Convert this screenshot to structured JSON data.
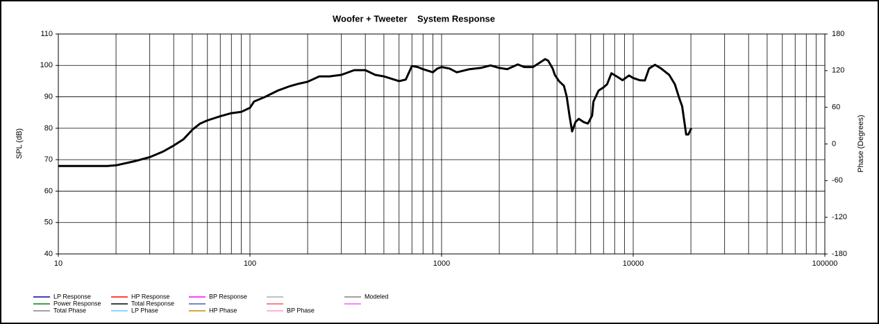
{
  "chart_data": {
    "type": "line",
    "title": "Woofer + Tweeter    System Response",
    "ylabel": "SPL (dB)",
    "y2label": "Phase (Degrees)",
    "log_x": true,
    "grid": true,
    "x_minor_grid": true,
    "xlim": [
      10,
      100000
    ],
    "xticks": [
      10,
      100,
      1000,
      10000,
      100000
    ],
    "ylim": [
      40,
      110
    ],
    "yticks": [
      40,
      50,
      60,
      70,
      80,
      90,
      100,
      110
    ],
    "y2lim": [
      -180,
      180
    ],
    "y2ticks": [
      -180,
      -120,
      -60,
      0,
      60,
      120,
      180
    ],
    "x": [
      10,
      18,
      20,
      25,
      30,
      35,
      40,
      45,
      50,
      55,
      60,
      70,
      80,
      90,
      100,
      105,
      120,
      140,
      160,
      180,
      200,
      230,
      260,
      300,
      350,
      400,
      450,
      500,
      600,
      650,
      700,
      750,
      800,
      900,
      950,
      1000,
      1100,
      1200,
      1400,
      1600,
      1800,
      2000,
      2200,
      2500,
      2700,
      3000,
      3470,
      3600,
      3800,
      3900,
      4100,
      4350,
      4500,
      4650,
      4800,
      5000,
      5200,
      5500,
      5800,
      6100,
      6200,
      6600,
      7000,
      7300,
      7700,
      8200,
      8800,
      9500,
      10000,
      10800,
      11500,
      12100,
      13000,
      14000,
      15400,
      16500,
      17300,
      18000,
      18900,
      19400,
      20100
    ],
    "series": [
      {
        "name": "LP Response",
        "color": "#0000a0",
        "values": null
      },
      {
        "name": "HP Response",
        "color": "#ff0000",
        "values": null
      },
      {
        "name": "BP Response",
        "color": "#ff00ff",
        "values": null
      },
      {
        "name": "Modeled",
        "color": "#808080",
        "values": null
      },
      {
        "name": "Power Response",
        "color": "#008000",
        "values": null
      },
      {
        "name": "Total Response",
        "color": "#000000",
        "values": [
          68,
          68,
          68.2,
          69.5,
          70.8,
          72.5,
          74.5,
          76.5,
          79.5,
          81.5,
          82.5,
          83.8,
          84.8,
          85.2,
          86.5,
          88.5,
          90,
          92,
          93.3,
          94.2,
          94.8,
          96.5,
          96.5,
          97,
          98.5,
          98.5,
          97,
          96.5,
          95,
          95.5,
          99.8,
          99.5,
          98.8,
          97.8,
          99,
          99.5,
          99,
          97.8,
          98.8,
          99.2,
          100,
          99.2,
          98.8,
          100.3,
          99.5,
          99.5,
          102,
          101.5,
          99,
          97,
          95,
          93.5,
          90,
          84,
          79,
          82,
          83,
          82,
          81.5,
          84,
          88.5,
          92,
          93,
          94,
          97.5,
          96.5,
          95.3,
          96.8,
          96,
          95.3,
          95.2,
          99,
          100.2,
          99,
          97,
          94,
          90,
          87,
          78,
          78,
          80
        ]
      },
      {
        "name": "Total Phase",
        "color": "#808080",
        "values": null
      },
      {
        "name": "LP Phase",
        "color": "#66ccff",
        "values": null
      },
      {
        "name": "HP Phase",
        "color": "#cc8800",
        "values": null
      },
      {
        "name": "BP Phase",
        "color": "#ff99cc",
        "values": null
      }
    ]
  }
}
